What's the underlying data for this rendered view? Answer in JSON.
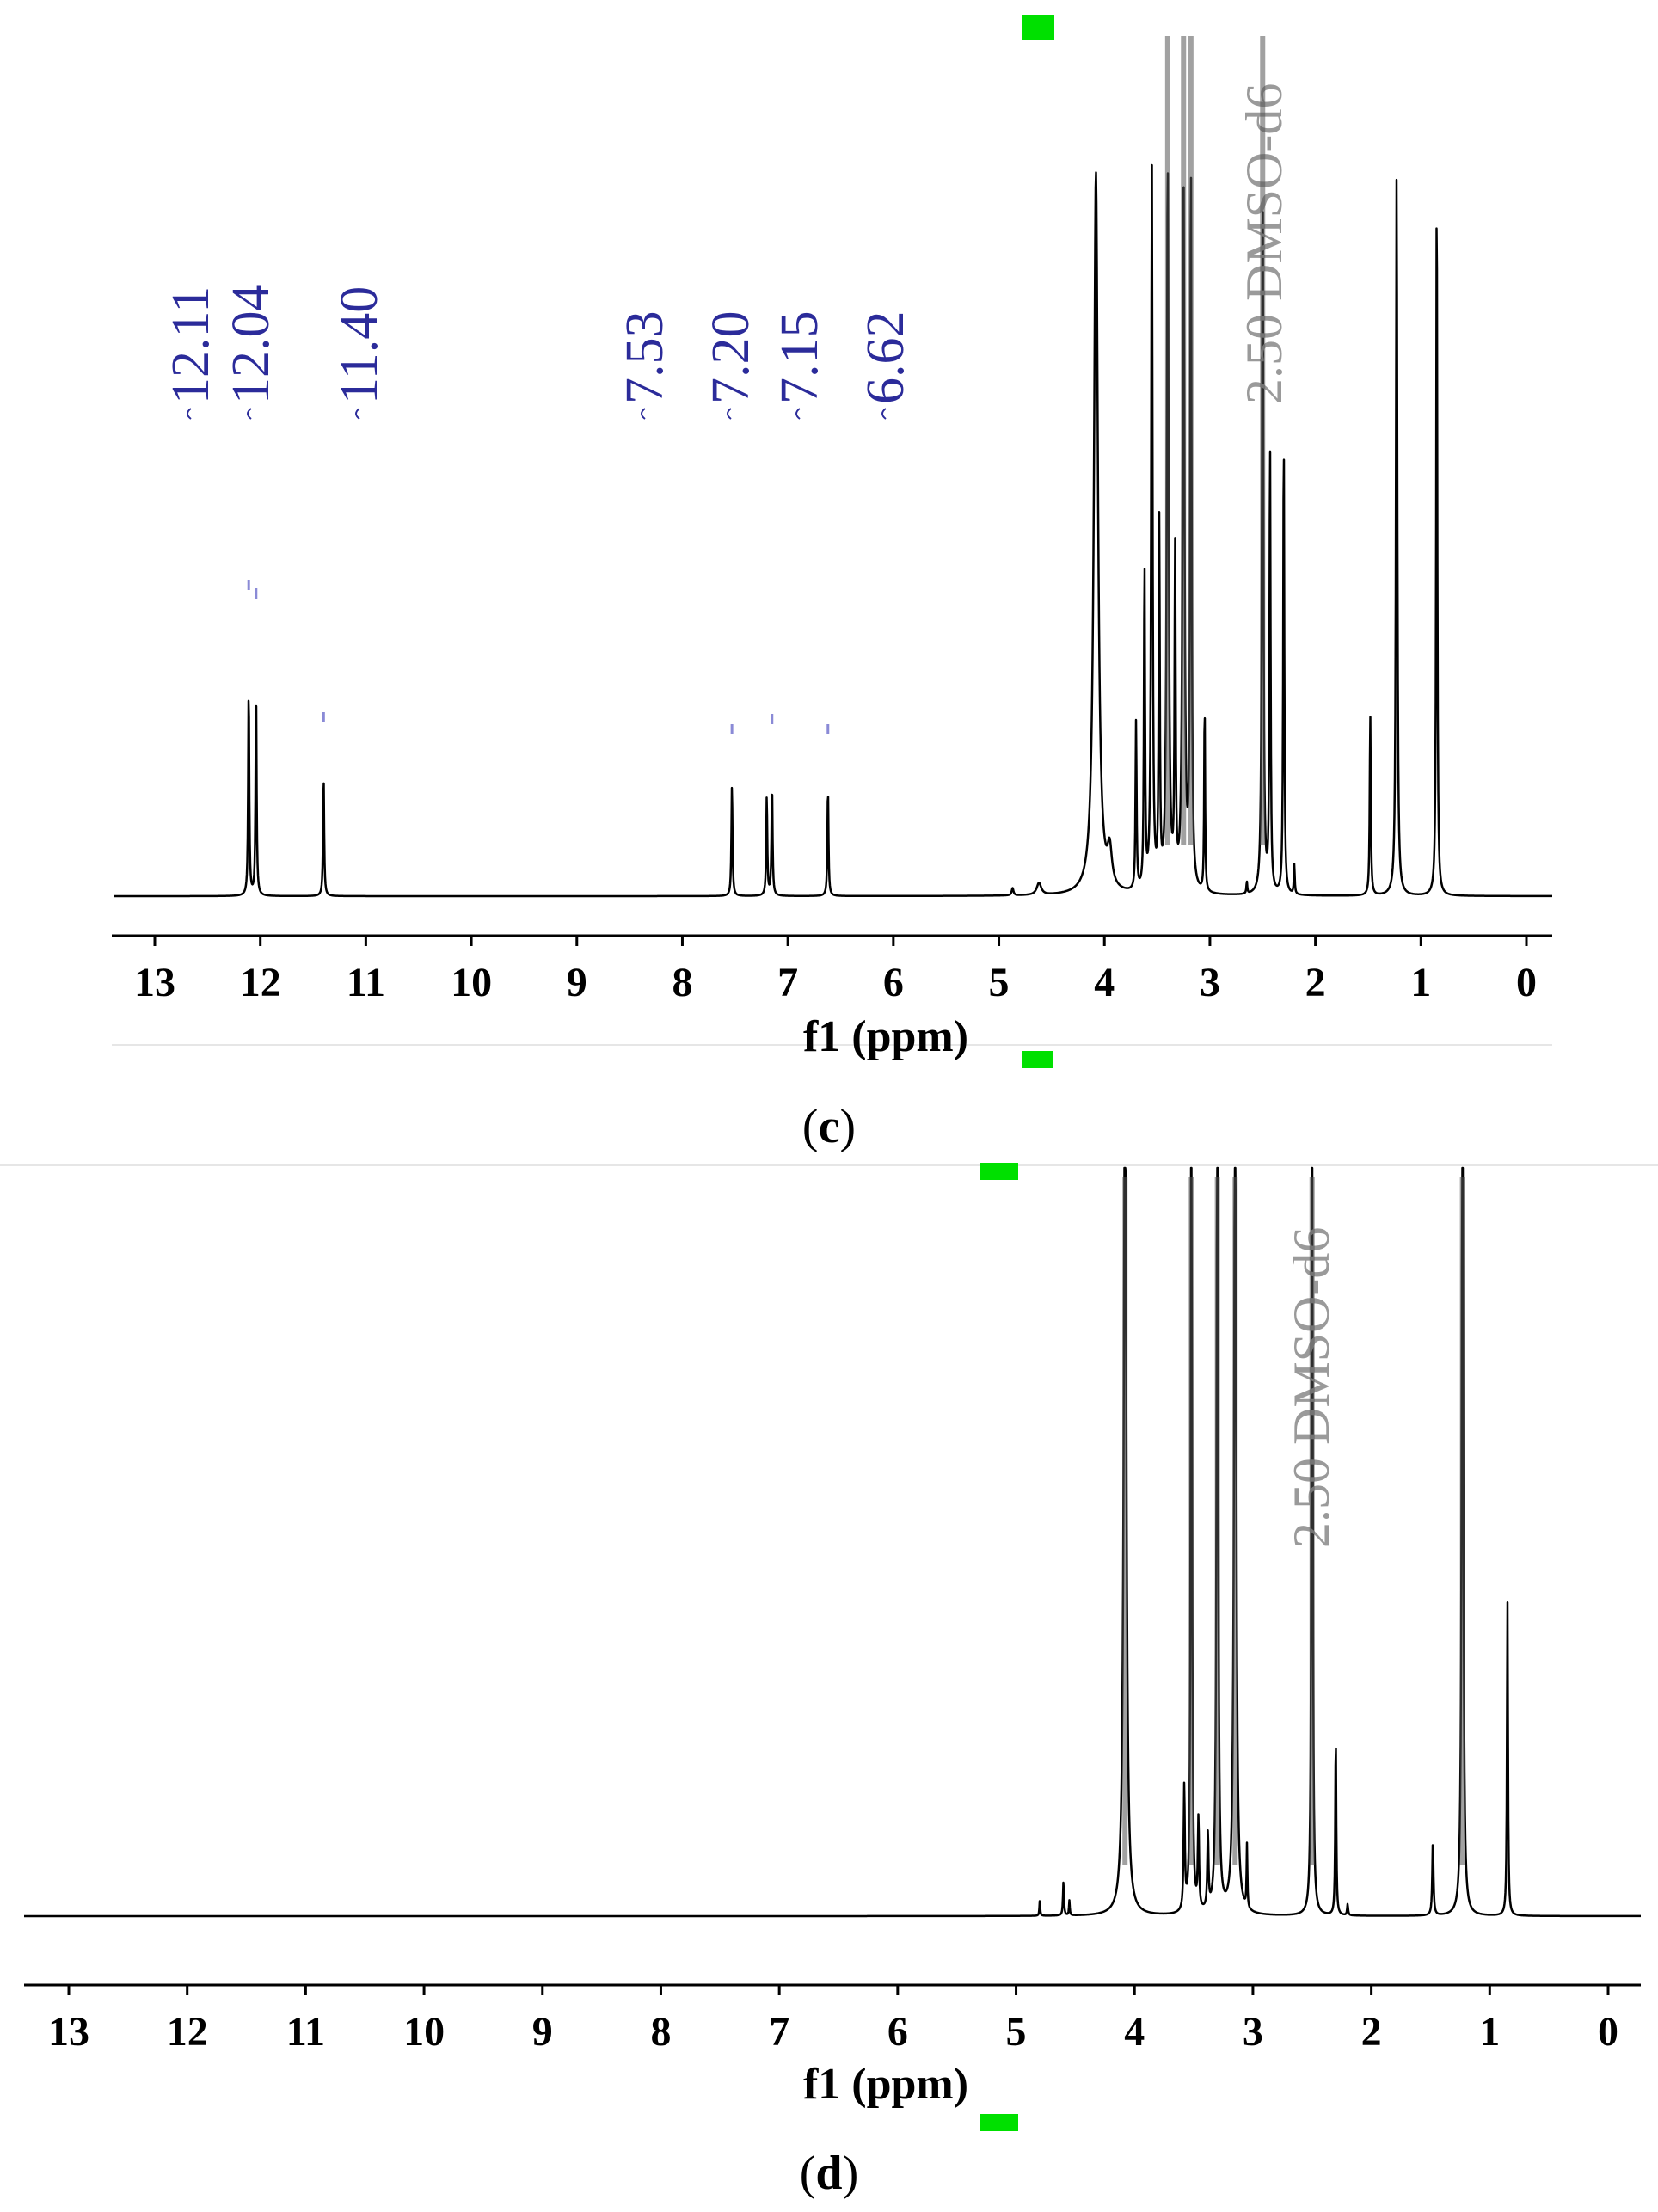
{
  "figure": {
    "panels": [
      {
        "caption_open": "(",
        "caption_letter": "c",
        "caption_close": ")"
      },
      {
        "caption_open": "(",
        "caption_letter": "d",
        "caption_close": ")"
      }
    ]
  },
  "chart_data": [
    {
      "type": "line",
      "panel": "c",
      "xlabel": "f1 (ppm)",
      "ylabel": "",
      "title": "",
      "xlim": [
        13.45,
        -0.25
      ],
      "x_reversed": true,
      "xticks": [
        13,
        12,
        11,
        10,
        9,
        8,
        7,
        6,
        5,
        4,
        3,
        2,
        1,
        0
      ],
      "grid": false,
      "peak_labels": [
        "12.11",
        "12.04",
        "11.40",
        "7.53",
        "7.20",
        "7.15",
        "6.62"
      ],
      "solvent_label": "2.50 DMSO-d6",
      "peaks": [
        {
          "x": 12.11,
          "h": 0.345,
          "w": 0.012
        },
        {
          "x": 12.04,
          "h": 0.34,
          "w": 0.012
        },
        {
          "x": 11.4,
          "h": 0.2,
          "w": 0.012
        },
        {
          "x": 7.53,
          "h": 0.185,
          "w": 0.012
        },
        {
          "x": 7.2,
          "h": 0.165,
          "w": 0.012
        },
        {
          "x": 7.15,
          "h": 0.185,
          "w": 0.012
        },
        {
          "x": 6.62,
          "h": 0.18,
          "w": 0.012
        },
        {
          "x": 4.87,
          "h": 0.012,
          "w": 0.02
        },
        {
          "x": 4.62,
          "h": 0.02,
          "w": 0.05
        },
        {
          "x": 4.08,
          "h": 1.2,
          "w": 0.045
        },
        {
          "x": 3.95,
          "h": 0.06,
          "w": 0.05
        },
        {
          "x": 3.7,
          "h": 0.28,
          "w": 0.012
        },
        {
          "x": 3.62,
          "h": 0.54,
          "w": 0.012
        },
        {
          "x": 3.55,
          "h": 1.2,
          "w": 0.015
        },
        {
          "x": 3.48,
          "h": 0.6,
          "w": 0.012
        },
        {
          "x": 3.4,
          "h": 1.2,
          "w": 0.02
        },
        {
          "x": 3.33,
          "h": 0.55,
          "w": 0.012
        },
        {
          "x": 3.25,
          "h": 1.2,
          "w": 0.02
        },
        {
          "x": 3.18,
          "h": 1.2,
          "w": 0.015
        },
        {
          "x": 3.05,
          "h": 0.32,
          "w": 0.01
        },
        {
          "x": 2.65,
          "h": 0.02,
          "w": 0.01
        },
        {
          "x": 2.5,
          "h": 1.2,
          "w": 0.015
        },
        {
          "x": 2.43,
          "h": 0.75,
          "w": 0.012
        },
        {
          "x": 2.3,
          "h": 0.77,
          "w": 0.012
        },
        {
          "x": 2.2,
          "h": 0.05,
          "w": 0.01
        },
        {
          "x": 1.48,
          "h": 0.3,
          "w": 0.012
        },
        {
          "x": 1.23,
          "h": 1.2,
          "w": 0.015
        },
        {
          "x": 0.85,
          "h": 1.2,
          "w": 0.012
        }
      ]
    },
    {
      "type": "line",
      "panel": "d",
      "xlabel": "f1 (ppm)",
      "ylabel": "",
      "title": "",
      "xlim": [
        13.45,
        -0.25
      ],
      "x_reversed": true,
      "xticks": [
        13,
        12,
        11,
        10,
        9,
        8,
        7,
        6,
        5,
        4,
        3,
        2,
        1,
        0
      ],
      "grid": false,
      "peak_labels": [],
      "solvent_label": "2.50 DMSO-d6",
      "peaks": [
        {
          "x": 4.8,
          "h": 0.02,
          "w": 0.008
        },
        {
          "x": 4.6,
          "h": 0.045,
          "w": 0.01
        },
        {
          "x": 4.55,
          "h": 0.02,
          "w": 0.008
        },
        {
          "x": 4.08,
          "h": 1.2,
          "w": 0.025
        },
        {
          "x": 3.58,
          "h": 0.165,
          "w": 0.012
        },
        {
          "x": 3.52,
          "h": 1.2,
          "w": 0.012
        },
        {
          "x": 3.46,
          "h": 0.12,
          "w": 0.012
        },
        {
          "x": 3.38,
          "h": 0.1,
          "w": 0.012
        },
        {
          "x": 3.3,
          "h": 1.2,
          "w": 0.015
        },
        {
          "x": 3.15,
          "h": 1.2,
          "w": 0.02
        },
        {
          "x": 3.05,
          "h": 0.085,
          "w": 0.008
        },
        {
          "x": 2.5,
          "h": 1.2,
          "w": 0.012
        },
        {
          "x": 2.3,
          "h": 0.24,
          "w": 0.01
        },
        {
          "x": 2.2,
          "h": 0.015,
          "w": 0.01
        },
        {
          "x": 1.48,
          "h": 0.1,
          "w": 0.012
        },
        {
          "x": 1.23,
          "h": 1.2,
          "w": 0.015
        },
        {
          "x": 0.85,
          "h": 0.42,
          "w": 0.01
        }
      ]
    }
  ]
}
